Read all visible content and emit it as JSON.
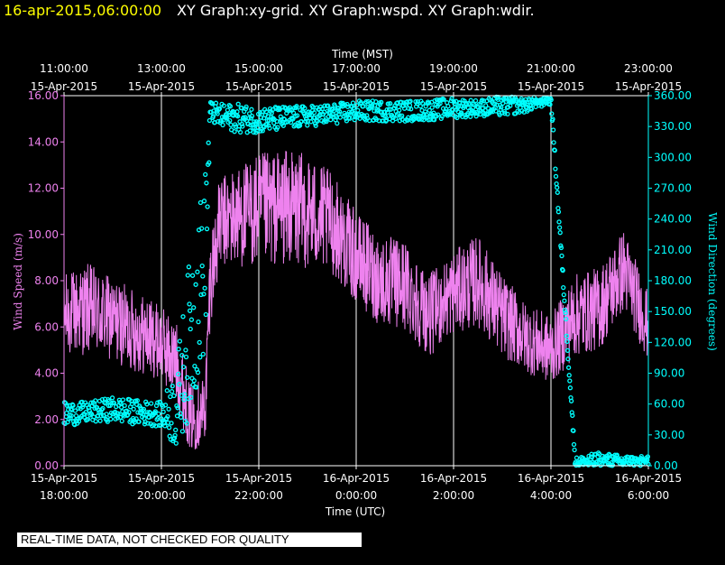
{
  "header": {
    "timestamp": "16-apr-2015,06:00:00",
    "graphs": "XY Graph:xy-grid.  XY Graph:wspd.  XY Graph:wdir."
  },
  "colors": {
    "timestamp": "#ffff00",
    "wind_speed": "#ee82ee",
    "wind_direction": "#00ffff",
    "grid": "#ffffff",
    "background": "#000000"
  },
  "disclaimer": "REAL-TIME DATA, NOT CHECKED FOR QUALITY",
  "chart_data": {
    "type": "scatter",
    "title": "",
    "grid": true,
    "x_top": {
      "label": "Time (MST)",
      "ticks": [
        {
          "time": "11:00:00",
          "date": "15-Apr-2015"
        },
        {
          "time": "13:00:00",
          "date": "15-Apr-2015"
        },
        {
          "time": "15:00:00",
          "date": "15-Apr-2015"
        },
        {
          "time": "17:00:00",
          "date": "15-Apr-2015"
        },
        {
          "time": "19:00:00",
          "date": "15-Apr-2015"
        },
        {
          "time": "21:00:00",
          "date": "15-Apr-2015"
        },
        {
          "time": "23:00:00",
          "date": "15-Apr-2015"
        }
      ]
    },
    "x_bottom": {
      "label": "Time (UTC)",
      "range": [
        "2015-04-15 18:00 UTC",
        "2015-04-16 06:00 UTC"
      ],
      "ticks": [
        {
          "date": "15-Apr-2015",
          "time": "18:00:00"
        },
        {
          "date": "15-Apr-2015",
          "time": "20:00:00"
        },
        {
          "date": "15-Apr-2015",
          "time": "22:00:00"
        },
        {
          "date": "16-Apr-2015",
          "time": "0:00:00"
        },
        {
          "date": "16-Apr-2015",
          "time": "2:00:00"
        },
        {
          "date": "16-Apr-2015",
          "time": "4:00:00"
        },
        {
          "date": "16-Apr-2015",
          "time": "6:00:00"
        }
      ]
    },
    "y_left": {
      "label": "Wind Speed (m/s)",
      "range": [
        0,
        16
      ],
      "ticks": [
        "0.00",
        "2.00",
        "4.00",
        "6.00",
        "8.00",
        "10.00",
        "12.00",
        "14.00",
        "16.00"
      ]
    },
    "y_right": {
      "label": "Wind Direction (degrees)",
      "range": [
        0,
        360
      ],
      "ticks": [
        "0.00",
        "30.00",
        "60.00",
        "90.00",
        "120.00",
        "150.00",
        "180.00",
        "210.00",
        "240.00",
        "270.00",
        "300.00",
        "330.00",
        "360.00"
      ]
    },
    "series": [
      {
        "key": "wspd",
        "style": "line",
        "axis": "left",
        "x_hours_utc_since_1800": [
          0,
          0.5,
          1,
          1.5,
          2,
          2.3,
          2.6,
          2.9,
          3.0,
          3.2,
          3.6,
          4,
          4.5,
          5,
          5.5,
          6,
          6.5,
          7,
          7.5,
          8,
          8.5,
          9,
          9.5,
          10,
          10.5,
          11,
          11.5,
          12
        ],
        "mean": [
          6.5,
          6.8,
          6.3,
          5.8,
          5.3,
          4.5,
          2.0,
          2.5,
          8.0,
          10.5,
          10.8,
          11.0,
          11.2,
          11.0,
          10.5,
          9.0,
          8.0,
          7.8,
          6.5,
          7.5,
          8.0,
          6.5,
          5.5,
          5.0,
          6.5,
          6.8,
          8.5,
          6.0
        ],
        "spread": [
          1.8,
          2.0,
          1.8,
          1.8,
          1.6,
          1.8,
          1.5,
          1.5,
          2.0,
          2.0,
          2.2,
          2.5,
          2.5,
          2.5,
          2.2,
          2.0,
          2.0,
          2.0,
          1.8,
          1.8,
          2.0,
          1.8,
          1.5,
          1.5,
          1.8,
          1.8,
          1.8,
          1.5
        ]
      },
      {
        "key": "wdir",
        "style": "markers",
        "axis": "right",
        "x_hours_utc_since_1800": [
          0,
          0.5,
          1,
          1.5,
          2,
          2.3,
          2.6,
          2.9,
          3.0,
          3.2,
          3.6,
          4,
          4.5,
          5,
          5.5,
          6,
          6.5,
          7,
          7.5,
          8,
          8.5,
          9,
          9.5,
          10,
          10.5,
          11,
          11.5,
          12
        ],
        "mean": [
          50,
          52,
          55,
          52,
          50,
          55,
          130,
          200,
          345,
          340,
          338,
          336,
          338,
          340,
          342,
          345,
          345,
          345,
          346,
          348,
          348,
          350,
          352,
          358,
          3,
          5,
          4,
          3
        ],
        "spread": [
          12,
          10,
          12,
          12,
          12,
          40,
          80,
          90,
          10,
          12,
          14,
          12,
          12,
          10,
          10,
          10,
          10,
          10,
          10,
          10,
          8,
          10,
          8,
          6,
          5,
          8,
          6,
          6
        ]
      }
    ]
  }
}
